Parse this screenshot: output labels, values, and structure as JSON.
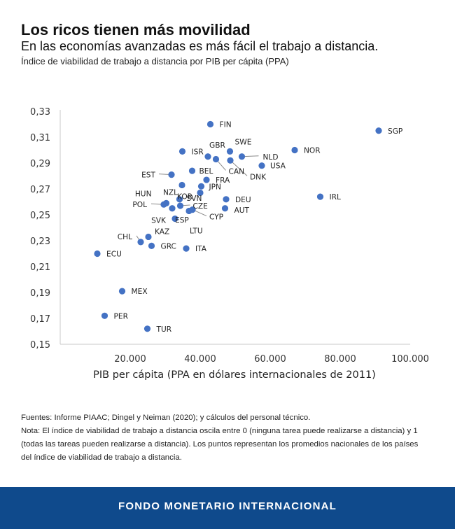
{
  "header": {
    "title": "Los ricos tienen más movilidad",
    "subtitle": "En las economías avanzadas es más fácil el trabajo a distancia.",
    "caption": "Índice de viabilidad de trabajo a distancia por PIB per cápita (PPA)"
  },
  "chart_data": {
    "type": "scatter",
    "xlabel": "PIB per cápita (PPA en dólares internacionales de 2011)",
    "ylabel": "",
    "xlim": [
      0,
      100000
    ],
    "ylim": [
      0.15,
      0.33
    ],
    "xticks": [
      20000,
      40000,
      60000,
      80000,
      100000
    ],
    "xtick_labels": [
      "20.000",
      "40.000",
      "60.000",
      "80.000",
      "100.000"
    ],
    "yticks": [
      0.15,
      0.17,
      0.19,
      0.21,
      0.23,
      0.25,
      0.27,
      0.29,
      0.31,
      0.33
    ],
    "ytick_labels": [
      "0,15",
      "0,17",
      "0,19",
      "0,21",
      "0,23",
      "0,25",
      "0,27",
      "0,29",
      "0,31",
      "0,33"
    ],
    "grid": false,
    "point_color": "#4472c4",
    "points": [
      {
        "label": "FIN",
        "x": 42900,
        "y": 0.32
      },
      {
        "label": "SGP",
        "x": 91000,
        "y": 0.315
      },
      {
        "label": "NOR",
        "x": 67000,
        "y": 0.3
      },
      {
        "label": "SWE",
        "x": 48500,
        "y": 0.299
      },
      {
        "label": "ISR",
        "x": 34900,
        "y": 0.299
      },
      {
        "label": "GBR",
        "x": 42200,
        "y": 0.295
      },
      {
        "label": "NLD",
        "x": 51900,
        "y": 0.295
      },
      {
        "label": "CAN",
        "x": 44500,
        "y": 0.293
      },
      {
        "label": "DNK",
        "x": 48600,
        "y": 0.292
      },
      {
        "label": "USA",
        "x": 57600,
        "y": 0.288
      },
      {
        "label": "BEL",
        "x": 37700,
        "y": 0.284
      },
      {
        "label": "EST",
        "x": 31800,
        "y": 0.281
      },
      {
        "label": "NZL",
        "x": 34800,
        "y": 0.273
      },
      {
        "label": "FRA",
        "x": 41800,
        "y": 0.277
      },
      {
        "label": "JPN",
        "x": 40300,
        "y": 0.272
      },
      {
        "label": "KOR",
        "x": 40000,
        "y": 0.267
      },
      {
        "label": "IRL",
        "x": 74300,
        "y": 0.264
      },
      {
        "label": "DEU",
        "x": 47400,
        "y": 0.262
      },
      {
        "label": "SVN",
        "x": 34100,
        "y": 0.262
      },
      {
        "label": "HUN",
        "x": 30300,
        "y": 0.259
      },
      {
        "label": "POL",
        "x": 29600,
        "y": 0.258
      },
      {
        "label": "CZE",
        "x": 34300,
        "y": 0.257
      },
      {
        "label": "AUT",
        "x": 47100,
        "y": 0.255
      },
      {
        "label": "ESP",
        "x": 32000,
        "y": 0.255
      },
      {
        "label": "CYP",
        "x": 37800,
        "y": 0.254
      },
      {
        "label": "LTU",
        "x": 36800,
        "y": 0.253
      },
      {
        "label": "SVK",
        "x": 32800,
        "y": 0.247
      },
      {
        "label": "KAZ",
        "x": 25200,
        "y": 0.233
      },
      {
        "label": "CHL",
        "x": 23000,
        "y": 0.229
      },
      {
        "label": "GRC",
        "x": 26100,
        "y": 0.226
      },
      {
        "label": "ITA",
        "x": 36000,
        "y": 0.224
      },
      {
        "label": "ECU",
        "x": 10600,
        "y": 0.22
      },
      {
        "label": "MEX",
        "x": 17700,
        "y": 0.191
      },
      {
        "label": "PER",
        "x": 12700,
        "y": 0.172
      },
      {
        "label": "TUR",
        "x": 24900,
        "y": 0.162
      }
    ]
  },
  "notes": {
    "sources": "Fuentes: Informe PIAAC; Dingel y Neiman (2020); y cálculos del personal técnico.",
    "note": "Nota: El índice de viabilidad de trabajo a distancia oscila entre 0 (ninguna tarea puede realizarse a distancia) y 1 (todas las tareas pueden realizarse a distancia). Los puntos representan los promedios nacionales de los países del índice de viabilidad de trabajo a distancia."
  },
  "footer": {
    "org": "FONDO MONETARIO INTERNACIONAL",
    "color": "#0f4a8c"
  }
}
